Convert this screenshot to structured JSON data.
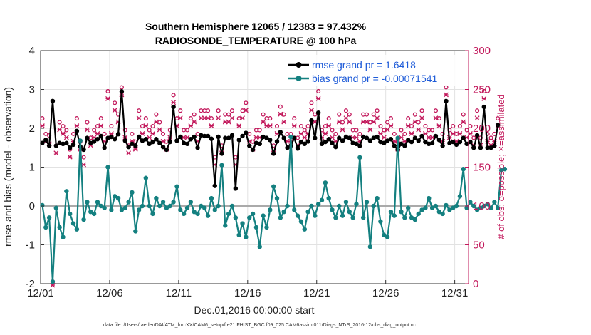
{
  "chart_data": {
    "type": "line",
    "title_line1": "Southern Hemisphere 12065 / 12383 = 97.432%",
    "title_line2": "RADIOSONDE_TEMPERATURE @ 100 hPa",
    "xlabel": "Dec.01,2016 00:00:00 start",
    "ylabel_left": "rmse and bias (model - observation)",
    "ylabel_right": "# of obs: o=possible; ×=assimilated",
    "footer": "data file: /Users/raeder/DAI/ATM_forcXX/CAM6_setup/f.e21.FHIST_BGC.f09_025.CAM6assim.011/Diags_NTrS_2016-12/obs_diag_output.nc",
    "x_ticks": [
      {
        "value": 1,
        "label": "12/01"
      },
      {
        "value": 6,
        "label": "12/06"
      },
      {
        "value": 11,
        "label": "12/11"
      },
      {
        "value": 16,
        "label": "12/16"
      },
      {
        "value": 21,
        "label": "12/21"
      },
      {
        "value": 26,
        "label": "12/26"
      },
      {
        "value": 31,
        "label": "12/31"
      }
    ],
    "xlim": [
      1,
      32
    ],
    "ylim_left": [
      -2,
      4
    ],
    "ylim_right": [
      0,
      300
    ],
    "y_ticks_left": [
      "-2",
      "-1",
      "0",
      "1",
      "2",
      "3",
      "4"
    ],
    "y_ticks_right": [
      "0",
      "50",
      "100",
      "150",
      "200",
      "250",
      "300"
    ],
    "grid": true,
    "legend_position": "top-right",
    "colors": {
      "rmse": "#000000",
      "bias": "#148080",
      "obs": "#c2185b",
      "zero_line": "#aaaaaa",
      "legend_text": "#1e5bd8"
    },
    "series": [
      {
        "name": "rmse grand pr = 1.6418",
        "axis": "left",
        "color": "#000000",
        "values": [
          1.62,
          1.7,
          1.55,
          2.7,
          1.55,
          1.62,
          1.6,
          1.62,
          1.5,
          1.58,
          1.93,
          1.53,
          1.45,
          1.75,
          1.62,
          1.66,
          1.72,
          1.8,
          1.5,
          1.75,
          1.78,
          1.72,
          1.85,
          2.95,
          1.68,
          1.52,
          1.6,
          1.55,
          1.78,
          1.68,
          1.72,
          1.6,
          1.65,
          1.72,
          1.62,
          1.52,
          1.45,
          1.65,
          2.55,
          1.68,
          1.78,
          1.62,
          1.6,
          1.72,
          1.78,
          1.5,
          1.82,
          1.8,
          1.8,
          1.73,
          0.52,
          1.78,
          1.35,
          1.75,
          1.75,
          1.82,
          0.45,
          1.7,
          1.8,
          1.88,
          1.55,
          1.45,
          1.62,
          1.6,
          1.78,
          1.75,
          1.7,
          1.35,
          1.66,
          1.9,
          1.75,
          1.5,
          1.55,
          1.75,
          1.48,
          1.65,
          1.6,
          1.66,
          2.2,
          1.75,
          2.4,
          1.6,
          1.65,
          1.72,
          1.62,
          1.52,
          1.75,
          1.68,
          1.78,
          1.75,
          1.62,
          1.6,
          1.55,
          1.78,
          1.75,
          1.68,
          1.75,
          1.78,
          1.65,
          1.62,
          1.68,
          1.72,
          1.55,
          1.45,
          1.6,
          1.55,
          1.7,
          1.65,
          1.75,
          1.68,
          1.8,
          1.65,
          1.6,
          1.62,
          1.8,
          1.7,
          1.55,
          2.7,
          1.62,
          1.65,
          1.58,
          1.65,
          1.75,
          1.6,
          1.65,
          1.5,
          1.82,
          1.5,
          2.55,
          1.5,
          1.5,
          1.55,
          2.08
        ]
      },
      {
        "name": "bias grand pr = -0.00071541",
        "axis": "left",
        "color": "#148080",
        "values": [
          0.02,
          -0.55,
          -0.3,
          -1.95,
          -0.05,
          -0.55,
          -0.8,
          0.38,
          -0.2,
          -0.45,
          -0.6,
          1.68,
          -0.35,
          0.1,
          -0.15,
          -0.2,
          0.1,
          0.0,
          -0.05,
          1.0,
          -0.1,
          0.25,
          0.2,
          -0.1,
          -0.05,
          0.1,
          0.35,
          -0.65,
          -0.1,
          0.0,
          0.72,
          0.0,
          -0.2,
          0.2,
          0.0,
          0.1,
          -0.05,
          0.0,
          0.1,
          0.5,
          -0.1,
          -0.2,
          -0.05,
          0.1,
          -0.15,
          -0.2,
          0.0,
          -0.05,
          -0.25,
          0.2,
          -0.1,
          0.0,
          1.05,
          -0.5,
          -0.2,
          0.0,
          -0.3,
          -0.75,
          -0.45,
          -0.8,
          -0.3,
          -0.2,
          -0.55,
          -1.05,
          -0.25,
          -0.55,
          -0.1,
          0.5,
          0.2,
          -0.3,
          -0.15,
          0.0,
          1.78,
          -0.1,
          -0.25,
          -0.4,
          -0.6,
          -0.15,
          0.0,
          -0.25,
          0.05,
          0.15,
          0.6,
          0.2,
          -0.1,
          -0.3,
          0.0,
          -0.25,
          0.1,
          -0.15,
          -0.3,
          0.05,
          1.25,
          -0.3,
          0.1,
          -1.05,
          0.0,
          0.2,
          -0.4,
          -0.75,
          -0.8,
          -0.15,
          -0.25,
          1.75,
          -0.15,
          -0.3,
          -0.05,
          -0.3,
          -0.35,
          -0.2,
          -0.1,
          -0.05,
          0.2,
          -0.05,
          0.0,
          -0.15,
          -0.2,
          0.02,
          -0.1,
          -0.05,
          0.0,
          0.25,
          0.95,
          -0.05,
          0.1,
          0.0,
          -0.1,
          -0.05,
          0.0,
          0.05,
          -0.05,
          0.1,
          -0.05,
          0.92,
          0.95
        ]
      }
    ],
    "obs_possible": [
      210,
      190,
      188,
      0,
      175,
      205,
      200,
      195,
      170,
      190,
      210,
      180,
      160,
      205,
      185,
      195,
      200,
      210,
      190,
      245,
      200,
      230,
      215,
      250,
      195,
      175,
      190,
      180,
      220,
      200,
      210,
      195,
      200,
      215,
      205,
      190,
      180,
      195,
      240,
      210,
      220,
      195,
      195,
      210,
      215,
      190,
      220,
      220,
      220,
      210,
      160,
      220,
      175,
      215,
      215,
      220,
      160,
      210,
      220,
      230,
      190,
      180,
      195,
      195,
      215,
      210,
      210,
      175,
      200,
      225,
      215,
      190,
      190,
      210,
      185,
      200,
      195,
      200,
      230,
      215,
      245,
      195,
      200,
      210,
      195,
      190,
      215,
      205,
      220,
      215,
      195,
      195,
      190,
      215,
      215,
      205,
      215,
      220,
      200,
      195,
      205,
      210,
      190,
      180,
      195,
      190,
      210,
      200,
      215,
      205,
      220,
      200,
      195,
      195,
      220,
      210,
      190,
      250,
      195,
      200,
      190,
      200,
      215,
      195,
      200,
      185,
      220,
      185,
      245,
      190,
      185,
      190,
      210
    ],
    "obs_assimilated": [
      205,
      185,
      182,
      0,
      170,
      200,
      195,
      190,
      165,
      185,
      205,
      175,
      155,
      200,
      180,
      190,
      195,
      205,
      185,
      240,
      195,
      225,
      210,
      245,
      190,
      170,
      185,
      175,
      215,
      195,
      205,
      190,
      195,
      210,
      200,
      185,
      175,
      190,
      235,
      205,
      215,
      190,
      190,
      205,
      210,
      185,
      215,
      215,
      215,
      205,
      155,
      215,
      170,
      210,
      210,
      215,
      155,
      205,
      215,
      225,
      185,
      175,
      190,
      190,
      210,
      205,
      205,
      170,
      195,
      220,
      210,
      185,
      185,
      205,
      180,
      195,
      190,
      195,
      225,
      210,
      240,
      190,
      195,
      205,
      190,
      185,
      210,
      200,
      215,
      210,
      190,
      190,
      185,
      210,
      210,
      200,
      210,
      215,
      195,
      190,
      200,
      205,
      185,
      175,
      190,
      185,
      205,
      195,
      210,
      200,
      215,
      195,
      190,
      190,
      215,
      205,
      185,
      245,
      190,
      195,
      185,
      195,
      210,
      190,
      195,
      180,
      215,
      180,
      240,
      185,
      180,
      185,
      205
    ]
  }
}
